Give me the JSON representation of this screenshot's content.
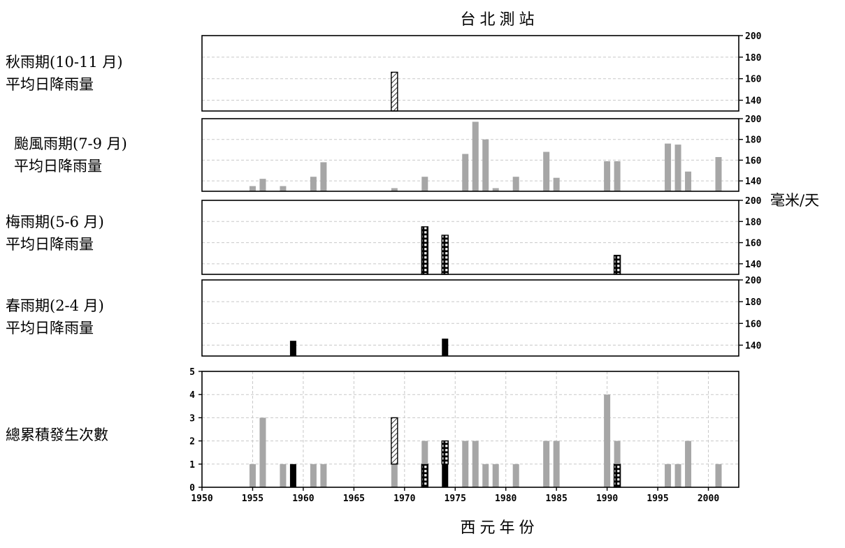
{
  "chart_data": [
    {
      "type": "bar",
      "label_lines": [
        "秋雨期(10-11 月)",
        "平均日降雨量"
      ],
      "ylim": [
        130,
        200
      ],
      "yticks": [
        140,
        160,
        180,
        200
      ],
      "series": [
        {
          "fill": "hatch",
          "x": [
            1969
          ],
          "y": [
            166
          ]
        }
      ]
    },
    {
      "type": "bar",
      "label_lines": [
        "颱風雨期(7-9 月)",
        "平均日降雨量"
      ],
      "ylim": [
        130,
        200
      ],
      "yticks": [
        140,
        160,
        180,
        200
      ],
      "series": [
        {
          "fill": "gray",
          "x": [
            1955,
            1956,
            1958,
            1961,
            1962,
            1969,
            1972,
            1976,
            1977,
            1978,
            1979,
            1981,
            1984,
            1985,
            1990,
            1991,
            1996,
            1997,
            1998,
            2001
          ],
          "y": [
            135,
            142,
            135,
            144,
            158,
            133,
            144,
            166,
            197,
            180,
            133,
            144,
            168,
            143,
            159,
            159,
            176,
            175,
            149,
            163
          ]
        }
      ]
    },
    {
      "type": "bar",
      "label_lines": [
        "梅雨期(5-6 月)",
        "平均日降雨量"
      ],
      "ylim": [
        130,
        200
      ],
      "yticks": [
        140,
        160,
        180,
        200
      ],
      "series": [
        {
          "fill": "checker",
          "x": [
            1972,
            1974,
            1991
          ],
          "y": [
            175,
            167,
            148
          ]
        }
      ]
    },
    {
      "type": "bar",
      "label_lines": [
        "春雨期(2-4 月)",
        "平均日降雨量"
      ],
      "ylim": [
        130,
        200
      ],
      "yticks": [
        140,
        160,
        180,
        200
      ],
      "series": [
        {
          "fill": "black",
          "x": [
            1959,
            1974
          ],
          "y": [
            144,
            146
          ]
        }
      ]
    },
    {
      "type": "bar",
      "label_lines": [
        "總累積發生次數"
      ],
      "ylim": [
        0,
        5
      ],
      "yticks": [
        0,
        1,
        2,
        3,
        4,
        5
      ],
      "xlim": [
        1950,
        2003
      ],
      "xticks": [
        1950,
        1955,
        1960,
        1965,
        1970,
        1975,
        1980,
        1985,
        1990,
        1995,
        2000
      ],
      "stacks": [
        {
          "x": 1955,
          "parts": [
            [
              "gray",
              1
            ]
          ]
        },
        {
          "x": 1956,
          "parts": [
            [
              "gray",
              3
            ]
          ]
        },
        {
          "x": 1958,
          "parts": [
            [
              "gray",
              1
            ]
          ]
        },
        {
          "x": 1959,
          "parts": [
            [
              "black",
              1
            ]
          ]
        },
        {
          "x": 1961,
          "parts": [
            [
              "gray",
              1
            ]
          ]
        },
        {
          "x": 1962,
          "parts": [
            [
              "gray",
              1
            ]
          ]
        },
        {
          "x": 1969,
          "parts": [
            [
              "gray",
              1
            ],
            [
              "hatch",
              2
            ]
          ]
        },
        {
          "x": 1972,
          "parts": [
            [
              "checker",
              1
            ],
            [
              "gray",
              1
            ]
          ]
        },
        {
          "x": 1974,
          "parts": [
            [
              "black",
              1
            ],
            [
              "checker",
              1
            ]
          ]
        },
        {
          "x": 1976,
          "parts": [
            [
              "gray",
              2
            ]
          ]
        },
        {
          "x": 1977,
          "parts": [
            [
              "gray",
              2
            ]
          ]
        },
        {
          "x": 1978,
          "parts": [
            [
              "gray",
              1
            ]
          ]
        },
        {
          "x": 1979,
          "parts": [
            [
              "gray",
              1
            ]
          ]
        },
        {
          "x": 1981,
          "parts": [
            [
              "gray",
              1
            ]
          ]
        },
        {
          "x": 1984,
          "parts": [
            [
              "gray",
              2
            ]
          ]
        },
        {
          "x": 1985,
          "parts": [
            [
              "gray",
              2
            ]
          ]
        },
        {
          "x": 1990,
          "parts": [
            [
              "gray",
              4
            ]
          ]
        },
        {
          "x": 1991,
          "parts": [
            [
              "checker",
              1
            ],
            [
              "gray",
              1
            ]
          ]
        },
        {
          "x": 1996,
          "parts": [
            [
              "gray",
              1
            ]
          ]
        },
        {
          "x": 1997,
          "parts": [
            [
              "gray",
              1
            ]
          ]
        },
        {
          "x": 1998,
          "parts": [
            [
              "gray",
              2
            ]
          ]
        },
        {
          "x": 2001,
          "parts": [
            [
              "gray",
              1
            ]
          ]
        }
      ]
    }
  ],
  "figure": {
    "title": "台北測站",
    "xlabel": "西元年份",
    "unit_label": "毫米/天",
    "colors": {
      "gray": "#a6a6a6",
      "black": "#000000",
      "grid": "#c8c8c8"
    }
  }
}
